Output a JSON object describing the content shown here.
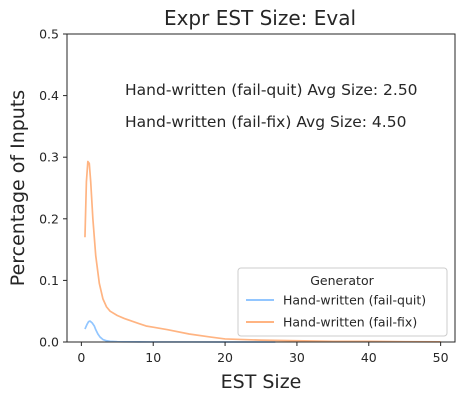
{
  "chart_data": {
    "type": "line",
    "title": "Expr EST Size: Eval",
    "xlabel": "EST Size",
    "ylabel": "Percentage of Inputs",
    "xlim": [
      -2,
      52
    ],
    "ylim": [
      0,
      0.5
    ],
    "xticks": [
      0,
      10,
      20,
      30,
      40,
      50
    ],
    "yticks": [
      0.0,
      0.1,
      0.2,
      0.3,
      0.4,
      0.5
    ],
    "xtick_labels": [
      "0",
      "10",
      "20",
      "30",
      "40",
      "50"
    ],
    "ytick_labels": [
      "0.0",
      "0.1",
      "0.2",
      "0.3",
      "0.4",
      "0.5"
    ],
    "grid": false,
    "legend": {
      "title": "Generator",
      "placement": "lower-right"
    },
    "annotations": [
      "Hand-written (fail-quit) Avg Size: 2.50",
      "Hand-written (fail-fix) Avg Size: 4.50"
    ],
    "series": [
      {
        "name": "Hand-written (fail-quit)",
        "color": "#92c6ff",
        "x": [
          0.5,
          0.8,
          1.0,
          1.2,
          1.5,
          1.8,
          2.0,
          2.3,
          2.6,
          3.0,
          3.5,
          4.0,
          5.0,
          6.0,
          8.0,
          10.0,
          15.0,
          20.0,
          27.0
        ],
        "y": [
          0.021,
          0.029,
          0.033,
          0.034,
          0.031,
          0.026,
          0.02,
          0.013,
          0.008,
          0.004,
          0.002,
          0.001,
          0.0005,
          0.0003,
          0.0002,
          0.0001,
          0.0001,
          0.0,
          0.0
        ]
      },
      {
        "name": "Hand-written (fail-fix)",
        "color": "#ffb482",
        "x": [
          0.5,
          0.7,
          0.9,
          1.1,
          1.3,
          1.6,
          2.0,
          2.5,
          3.0,
          3.5,
          4.0,
          5.0,
          6.0,
          7.0,
          8.0,
          9.0,
          10.0,
          12.0,
          15.0,
          18.0,
          20.0,
          25.0,
          30.0,
          35.0,
          40.0,
          45.0,
          50.0
        ],
        "y": [
          0.17,
          0.26,
          0.293,
          0.29,
          0.26,
          0.2,
          0.14,
          0.095,
          0.07,
          0.057,
          0.05,
          0.043,
          0.038,
          0.034,
          0.03,
          0.026,
          0.024,
          0.02,
          0.013,
          0.008,
          0.005,
          0.003,
          0.002,
          0.001,
          0.001,
          0.0005,
          0.0003
        ]
      }
    ]
  }
}
